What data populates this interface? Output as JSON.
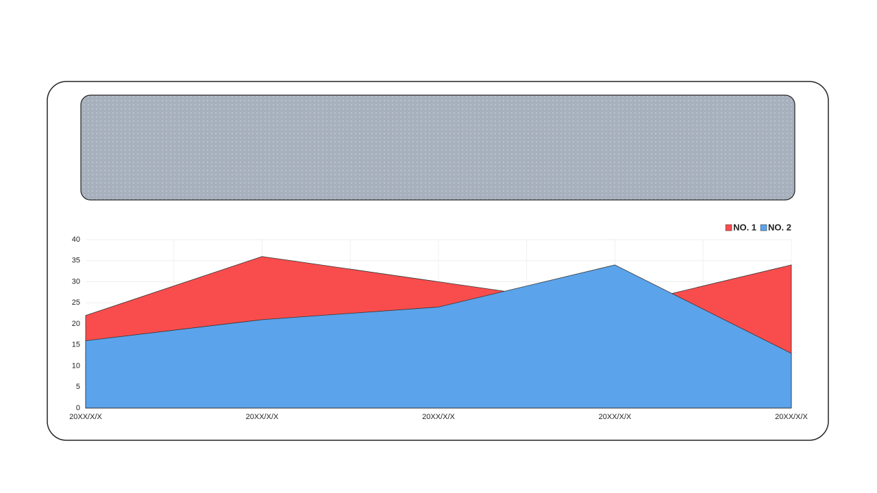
{
  "chart_data": {
    "type": "area",
    "categories": [
      "20XX/X/X",
      "20XX/X/X",
      "20XX/X/X",
      "20XX/X/X",
      "20XX/X/X"
    ],
    "series": [
      {
        "name": "NO. 1",
        "color": "#f94d4d",
        "values": [
          22,
          36,
          30,
          24,
          34
        ]
      },
      {
        "name": "NO. 2",
        "color": "#5ba3ea",
        "values": [
          16,
          21,
          24,
          34,
          13
        ]
      }
    ],
    "ylim": [
      0,
      40
    ],
    "yticks": [
      0,
      5,
      10,
      15,
      20,
      25,
      30,
      35,
      40
    ],
    "grid": true,
    "legend": "top-right"
  }
}
